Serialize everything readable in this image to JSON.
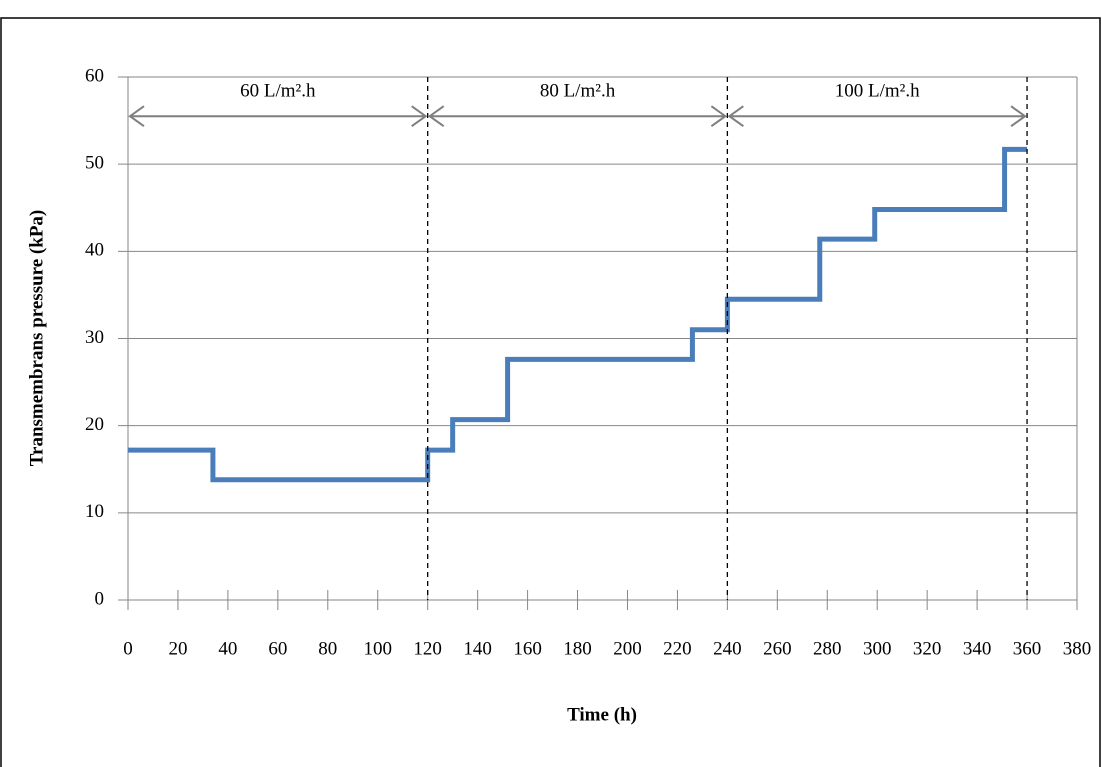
{
  "chart_data": {
    "type": "line",
    "x_label": "Time (h)",
    "y_label": "Transmembrans pressure (kPa)",
    "x": [
      0,
      34,
      34,
      120,
      120,
      130,
      130,
      152,
      152,
      226,
      226,
      240,
      240,
      277,
      277,
      299,
      299,
      351,
      351,
      360
    ],
    "series": [
      {
        "color": "#4a7ebb",
        "values": [
          17.2,
          17.2,
          13.8,
          13.8,
          17.2,
          17.2,
          20.7,
          20.7,
          27.6,
          27.6,
          31.0,
          31.0,
          34.5,
          34.5,
          41.4,
          41.4,
          44.8,
          44.8,
          51.7,
          51.7
        ]
      }
    ],
    "xlim": [
      0,
      380
    ],
    "xticks": [
      0,
      20,
      40,
      60,
      80,
      100,
      120,
      140,
      160,
      180,
      200,
      220,
      240,
      260,
      280,
      300,
      320,
      340,
      360,
      380
    ],
    "ylim": [
      0,
      60
    ],
    "yticks": [
      0,
      10,
      20,
      30,
      40,
      50,
      60
    ],
    "grid": true,
    "annotations": [
      {
        "text": "60 L/m².h",
        "x_start": 0,
        "x_end": 120,
        "y": 55.5
      },
      {
        "text": "80 L/m².h",
        "x_start": 120,
        "x_end": 240,
        "y": 55.5
      },
      {
        "text": "100 L/m².h",
        "x_start": 240,
        "x_end": 360,
        "y": 55.5
      }
    ]
  }
}
